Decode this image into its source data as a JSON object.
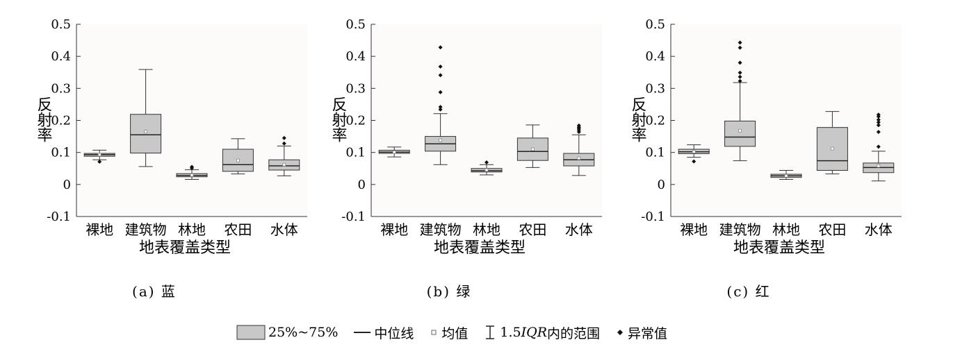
{
  "chart_data": [
    {
      "type": "box",
      "panel_id": "a",
      "caption": "(a) 蓝",
      "xlabel": "地表覆盖类型",
      "ylabel": "反射率",
      "ylim": [
        -0.1,
        0.5
      ],
      "yticks": [
        "0.5",
        "0.4",
        "0.3",
        "0.2",
        "0.1",
        "0",
        "-0.1"
      ],
      "ytick_values": [
        0.5,
        0.4,
        0.3,
        0.2,
        0.1,
        0,
        -0.1
      ],
      "grid": false,
      "categories": [
        "裸地",
        "建筑物",
        "林地",
        "农田",
        "水体"
      ],
      "boxes": [
        {
          "whisker_low": 0.077,
          "q1": 0.088,
          "median": 0.093,
          "q3": 0.097,
          "whisker_high": 0.107,
          "mean": 0.093,
          "outliers": [
            0.071
          ]
        },
        {
          "whisker_low": 0.056,
          "q1": 0.098,
          "median": 0.155,
          "q3": 0.219,
          "whisker_high": 0.359,
          "mean": 0.165,
          "outliers": []
        },
        {
          "whisker_low": 0.016,
          "q1": 0.024,
          "median": 0.028,
          "q3": 0.034,
          "whisker_high": 0.046,
          "mean": 0.029,
          "outliers": [
            0.051,
            0.055
          ]
        },
        {
          "whisker_low": 0.033,
          "q1": 0.041,
          "median": 0.062,
          "q3": 0.11,
          "whisker_high": 0.143,
          "mean": 0.075,
          "outliers": []
        },
        {
          "whisker_low": 0.027,
          "q1": 0.045,
          "median": 0.058,
          "q3": 0.077,
          "whisker_high": 0.12,
          "mean": 0.062,
          "outliers": [
            0.128,
            0.145
          ]
        }
      ]
    },
    {
      "type": "box",
      "panel_id": "b",
      "caption": "(b) 绿",
      "xlabel": "地表覆盖类型",
      "ylabel": "反射率",
      "ylim": [
        -0.1,
        0.5
      ],
      "yticks": [
        "0.5",
        "0.4",
        "0.3",
        "0.2",
        "0.1",
        "0",
        "-0.1"
      ],
      "ytick_values": [
        0.5,
        0.4,
        0.3,
        0.2,
        0.1,
        0,
        -0.1
      ],
      "grid": false,
      "categories": [
        "裸地",
        "建筑物",
        "林地",
        "农田",
        "水体"
      ],
      "boxes": [
        {
          "whisker_low": 0.086,
          "q1": 0.097,
          "median": 0.101,
          "q3": 0.107,
          "whisker_high": 0.117,
          "mean": 0.101,
          "outliers": []
        },
        {
          "whisker_low": 0.062,
          "q1": 0.104,
          "median": 0.127,
          "q3": 0.15,
          "whisker_high": 0.221,
          "mean": 0.138,
          "outliers": [
            0.234,
            0.242,
            0.288,
            0.341,
            0.368,
            0.428
          ]
        },
        {
          "whisker_low": 0.03,
          "q1": 0.039,
          "median": 0.043,
          "q3": 0.05,
          "whisker_high": 0.062,
          "mean": 0.045,
          "outliers": [
            0.069
          ]
        },
        {
          "whisker_low": 0.053,
          "q1": 0.075,
          "median": 0.103,
          "q3": 0.145,
          "whisker_high": 0.186,
          "mean": 0.11,
          "outliers": []
        },
        {
          "whisker_low": 0.028,
          "q1": 0.058,
          "median": 0.077,
          "q3": 0.097,
          "whisker_high": 0.155,
          "mean": 0.082,
          "outliers": [
            0.164,
            0.17,
            0.175,
            0.179,
            0.184
          ]
        }
      ]
    },
    {
      "type": "box",
      "panel_id": "c",
      "caption": "(c) 红",
      "xlabel": "地表覆盖类型",
      "ylabel": "反射率",
      "ylim": [
        -0.1,
        0.5
      ],
      "yticks": [
        "0.5",
        "0.4",
        "0.3",
        "0.2",
        "0.1",
        "0",
        "-0.1"
      ],
      "ytick_values": [
        0.5,
        0.4,
        0.3,
        0.2,
        0.1,
        0,
        -0.1
      ],
      "grid": false,
      "categories": [
        "裸地",
        "建筑物",
        "林地",
        "农田",
        "水体"
      ],
      "boxes": [
        {
          "whisker_low": 0.085,
          "q1": 0.096,
          "median": 0.102,
          "q3": 0.11,
          "whisker_high": 0.124,
          "mean": 0.102,
          "outliers": [
            0.072
          ]
        },
        {
          "whisker_low": 0.074,
          "q1": 0.119,
          "median": 0.148,
          "q3": 0.198,
          "whisker_high": 0.318,
          "mean": 0.168,
          "outliers": [
            0.323,
            0.336,
            0.349,
            0.38,
            0.427,
            0.443
          ]
        },
        {
          "whisker_low": 0.016,
          "q1": 0.022,
          "median": 0.027,
          "q3": 0.032,
          "whisker_high": 0.044,
          "mean": 0.027,
          "outliers": []
        },
        {
          "whisker_low": 0.033,
          "q1": 0.044,
          "median": 0.074,
          "q3": 0.178,
          "whisker_high": 0.228,
          "mean": 0.112,
          "outliers": []
        },
        {
          "whisker_low": 0.011,
          "q1": 0.037,
          "median": 0.053,
          "q3": 0.067,
          "whisker_high": 0.104,
          "mean": 0.058,
          "outliers": [
            0.118,
            0.164,
            0.185,
            0.194,
            0.202,
            0.212,
            0.218
          ]
        }
      ]
    }
  ],
  "colors": {
    "box_fill": "#c8c8c8",
    "plot_background": "#fdfafa",
    "line": "#333333",
    "mean_marker": "#888888",
    "outlier": "#111111"
  },
  "legend": {
    "box_label": "25%~75%",
    "median_label": "中位线",
    "mean_label": "均值",
    "range_label_number": "1.5",
    "range_label_italic": "IQR",
    "range_label_suffix": "内的范围",
    "outlier_label": "异常值"
  }
}
